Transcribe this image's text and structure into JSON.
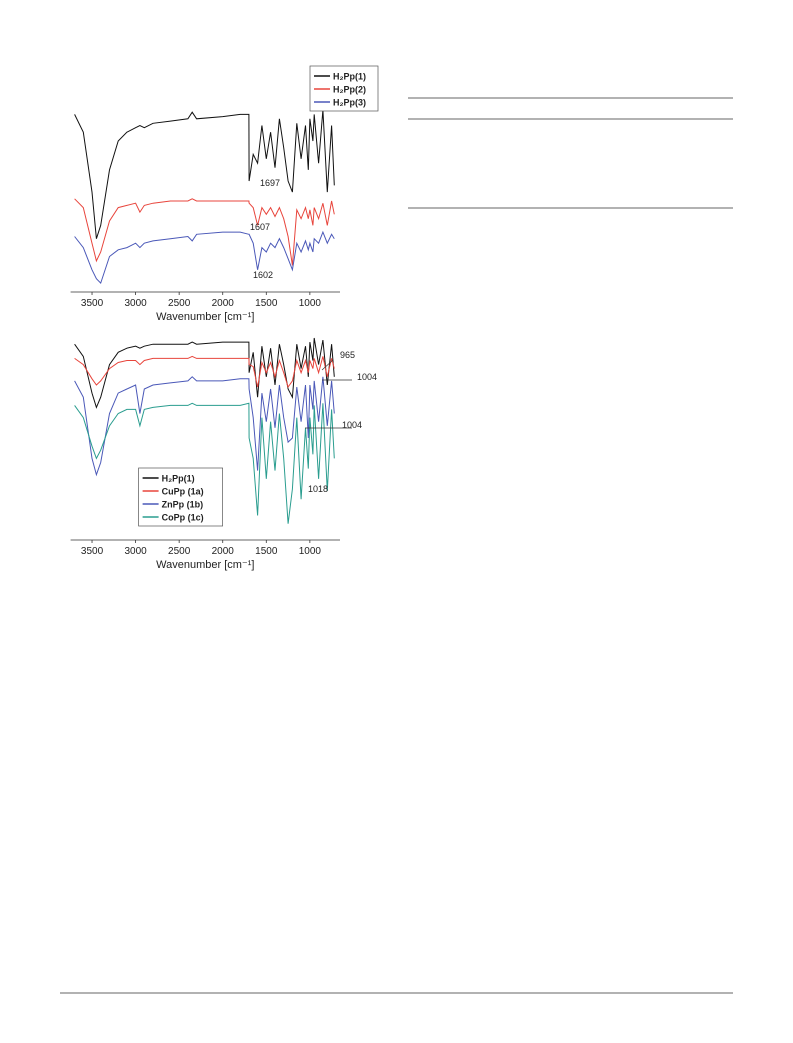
{
  "chart_data": [
    {
      "type": "line",
      "x": [
        3700,
        3600,
        3500,
        3450,
        3400,
        3300,
        3200,
        3100,
        3000,
        2950,
        2900,
        2800,
        2600,
        2400,
        2350,
        2300,
        2000,
        1800,
        1700,
        1697,
        1650,
        1600,
        1550,
        1500,
        1450,
        1400,
        1350,
        1300,
        1250,
        1200,
        1150,
        1100,
        1050,
        1018,
        1000,
        965,
        950,
        900,
        850,
        800,
        750,
        720
      ],
      "xlim": [
        3700,
        700
      ],
      "xticks": [
        3500,
        3000,
        2500,
        2000,
        1500,
        1000
      ],
      "ylim": [
        0,
        100
      ],
      "x_label": "Wavenumber [cm⁻¹]",
      "legend": "upper right",
      "series": [
        {
          "name": "H₂Pp(1)",
          "color": "#111111",
          "values": [
            80,
            72,
            45,
            24,
            30,
            55,
            68,
            72,
            74,
            75,
            74,
            76,
            77,
            78,
            81,
            78,
            79,
            80,
            80,
            50,
            62,
            58,
            75,
            60,
            72,
            56,
            78,
            65,
            50,
            45,
            76,
            60,
            75,
            55,
            78,
            68,
            80,
            58,
            82,
            45,
            75,
            48
          ]
        },
        {
          "name": "H₂Pp(2)",
          "color": "#e8453c",
          "values": [
            42,
            38,
            22,
            14,
            18,
            32,
            38,
            39,
            40,
            36,
            39,
            40,
            41,
            41,
            42,
            41,
            41,
            41,
            41,
            40,
            38,
            30,
            38,
            35,
            38,
            34,
            38,
            33,
            25,
            12,
            37,
            33,
            38,
            33,
            37,
            30,
            38,
            33,
            40,
            30,
            41,
            35
          ]
        },
        {
          "name": "H₂Pp(3)",
          "color": "#4a58b8",
          "values": [
            25,
            20,
            10,
            6,
            4,
            16,
            19,
            20,
            22,
            20,
            22,
            23,
            24,
            25,
            23,
            26,
            27,
            27,
            26,
            26,
            22,
            10,
            20,
            18,
            22,
            20,
            24,
            20,
            15,
            10,
            22,
            18,
            23,
            19,
            22,
            18,
            24,
            22,
            27,
            22,
            26,
            24
          ]
        }
      ],
      "annotations": [
        "1697",
        "1607",
        "1602"
      ]
    },
    {
      "type": "line",
      "x": [
        3700,
        3600,
        3500,
        3450,
        3400,
        3300,
        3200,
        3100,
        3000,
        2950,
        2900,
        2800,
        2600,
        2400,
        2350,
        2300,
        2000,
        1800,
        1700,
        1697,
        1650,
        1600,
        1550,
        1500,
        1450,
        1400,
        1350,
        1300,
        1250,
        1200,
        1150,
        1100,
        1050,
        1018,
        1000,
        965,
        950,
        900,
        850,
        800,
        750,
        720
      ],
      "xlim": [
        3700,
        700
      ],
      "xticks": [
        3500,
        3000,
        2500,
        2000,
        1500,
        1000
      ],
      "ylim": [
        0,
        100
      ],
      "x_label": "Wavenumber [cm⁻¹]",
      "legend": "lower left",
      "series": [
        {
          "name": "H₂Pp(1)",
          "color": "#111111",
          "values": [
            96,
            90,
            72,
            65,
            70,
            86,
            92,
            94,
            95,
            94,
            95,
            96,
            96,
            96,
            97,
            96,
            97,
            97,
            97,
            82,
            92,
            70,
            95,
            80,
            94,
            76,
            96,
            86,
            74,
            70,
            96,
            84,
            95,
            80,
            97,
            88,
            99,
            86,
            98,
            76,
            96,
            80
          ]
        },
        {
          "name": "CuPp (1a)",
          "color": "#e8453c",
          "values": [
            89,
            86,
            79,
            76,
            78,
            84,
            87,
            88,
            88,
            86,
            88,
            89,
            89,
            89,
            90,
            89,
            89,
            89,
            89,
            86,
            85,
            75,
            87,
            82,
            87,
            80,
            88,
            82,
            75,
            78,
            88,
            82,
            88,
            82,
            88,
            84,
            89,
            82,
            90,
            80,
            89,
            84
          ]
        },
        {
          "name": "ZnPp (1b)",
          "color": "#4a58b8",
          "values": [
            78,
            70,
            40,
            32,
            38,
            62,
            72,
            74,
            76,
            62,
            74,
            76,
            77,
            78,
            80,
            78,
            78,
            79,
            79,
            74,
            60,
            34,
            72,
            58,
            74,
            55,
            76,
            60,
            48,
            50,
            75,
            58,
            76,
            50,
            76,
            64,
            78,
            58,
            80,
            56,
            78,
            62
          ]
        },
        {
          "name": "CoPp (1c)",
          "color": "#2a9d8f",
          "values": [
            66,
            60,
            46,
            40,
            44,
            56,
            62,
            64,
            64,
            56,
            64,
            65,
            66,
            66,
            67,
            66,
            66,
            66,
            67,
            50,
            40,
            12,
            60,
            30,
            58,
            34,
            62,
            40,
            8,
            25,
            60,
            20,
            55,
            35,
            60,
            42,
            66,
            30,
            67,
            24,
            64,
            40
          ]
        }
      ],
      "annotations": [
        "965",
        "1004",
        "1004",
        "1018"
      ]
    }
  ]
}
